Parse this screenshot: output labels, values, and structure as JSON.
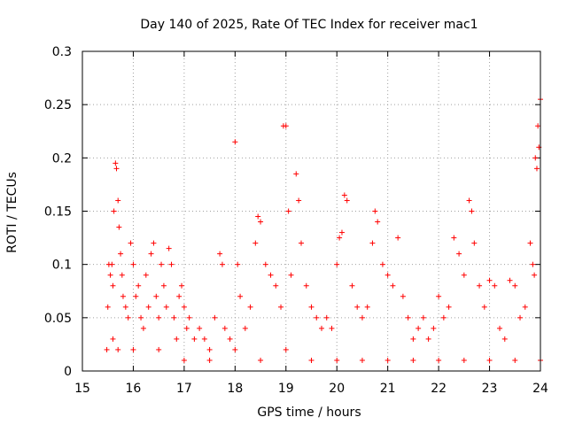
{
  "chart_data": {
    "type": "scatter",
    "title": "Day 140 of 2025, Rate Of TEC Index for receiver mac1",
    "xlabel": "GPS time / hours",
    "ylabel": "ROTI / TECUs",
    "xlim": [
      15,
      24
    ],
    "ylim": [
      0,
      0.3
    ],
    "xticks": [
      15,
      16,
      17,
      18,
      19,
      20,
      21,
      22,
      23,
      24
    ],
    "yticks": [
      0,
      0.05,
      0.1,
      0.15,
      0.2,
      0.25,
      0.3
    ],
    "xtick_labels": [
      "15",
      "16",
      "17",
      "18",
      "19",
      "20",
      "21",
      "22",
      "23",
      "24"
    ],
    "ytick_labels": [
      "0",
      "0.05",
      "0.1",
      "0.15",
      "0.2",
      "0.25",
      "0.3"
    ],
    "grid": true,
    "marker": "+",
    "color": "#ff0000",
    "series": [
      {
        "name": "ROTI",
        "points": [
          [
            15.48,
            0.02
          ],
          [
            15.5,
            0.06
          ],
          [
            15.52,
            0.1
          ],
          [
            15.55,
            0.09
          ],
          [
            15.58,
            0.1
          ],
          [
            15.6,
            0.08
          ],
          [
            15.62,
            0.15
          ],
          [
            15.65,
            0.195
          ],
          [
            15.67,
            0.19
          ],
          [
            15.7,
            0.16
          ],
          [
            15.72,
            0.135
          ],
          [
            15.75,
            0.11
          ],
          [
            15.78,
            0.09
          ],
          [
            15.8,
            0.07
          ],
          [
            15.85,
            0.06
          ],
          [
            15.9,
            0.05
          ],
          [
            15.95,
            0.12
          ],
          [
            16.0,
            0.1
          ],
          [
            16.05,
            0.07
          ],
          [
            16.1,
            0.08
          ],
          [
            16.15,
            0.05
          ],
          [
            16.2,
            0.04
          ],
          [
            16.25,
            0.09
          ],
          [
            16.3,
            0.06
          ],
          [
            16.35,
            0.11
          ],
          [
            16.4,
            0.12
          ],
          [
            16.45,
            0.07
          ],
          [
            16.5,
            0.05
          ],
          [
            16.55,
            0.1
          ],
          [
            16.6,
            0.08
          ],
          [
            16.65,
            0.06
          ],
          [
            16.7,
            0.115
          ],
          [
            16.75,
            0.1
          ],
          [
            16.8,
            0.05
          ],
          [
            16.85,
            0.03
          ],
          [
            16.9,
            0.07
          ],
          [
            16.95,
            0.08
          ],
          [
            17.0,
            0.06
          ],
          [
            17.05,
            0.04
          ],
          [
            17.1,
            0.05
          ],
          [
            17.2,
            0.03
          ],
          [
            17.3,
            0.04
          ],
          [
            17.4,
            0.03
          ],
          [
            17.5,
            0.02
          ],
          [
            17.6,
            0.05
          ],
          [
            17.7,
            0.11
          ],
          [
            17.75,
            0.1
          ],
          [
            17.8,
            0.04
          ],
          [
            17.9,
            0.03
          ],
          [
            18.0,
            0.215
          ],
          [
            18.05,
            0.1
          ],
          [
            18.1,
            0.07
          ],
          [
            18.2,
            0.04
          ],
          [
            18.3,
            0.06
          ],
          [
            18.4,
            0.12
          ],
          [
            18.45,
            0.145
          ],
          [
            18.5,
            0.14
          ],
          [
            18.6,
            0.1
          ],
          [
            18.7,
            0.09
          ],
          [
            18.8,
            0.08
          ],
          [
            18.9,
            0.06
          ],
          [
            18.95,
            0.23
          ],
          [
            19.0,
            0.23
          ],
          [
            19.05,
            0.15
          ],
          [
            19.1,
            0.09
          ],
          [
            19.2,
            0.185
          ],
          [
            19.25,
            0.16
          ],
          [
            19.3,
            0.12
          ],
          [
            19.4,
            0.08
          ],
          [
            19.5,
            0.06
          ],
          [
            19.6,
            0.05
          ],
          [
            19.7,
            0.04
          ],
          [
            19.8,
            0.05
          ],
          [
            19.9,
            0.04
          ],
          [
            20.0,
            0.1
          ],
          [
            20.05,
            0.125
          ],
          [
            20.1,
            0.13
          ],
          [
            20.15,
            0.165
          ],
          [
            20.2,
            0.16
          ],
          [
            20.3,
            0.08
          ],
          [
            20.4,
            0.06
          ],
          [
            20.5,
            0.05
          ],
          [
            20.6,
            0.06
          ],
          [
            20.7,
            0.12
          ],
          [
            20.75,
            0.15
          ],
          [
            20.8,
            0.14
          ],
          [
            20.9,
            0.1
          ],
          [
            21.0,
            0.09
          ],
          [
            21.1,
            0.08
          ],
          [
            21.2,
            0.125
          ],
          [
            21.3,
            0.07
          ],
          [
            21.4,
            0.05
          ],
          [
            21.5,
            0.03
          ],
          [
            21.6,
            0.04
          ],
          [
            21.7,
            0.05
          ],
          [
            21.8,
            0.03
          ],
          [
            21.9,
            0.04
          ],
          [
            22.0,
            0.07
          ],
          [
            22.1,
            0.05
          ],
          [
            22.2,
            0.06
          ],
          [
            22.3,
            0.125
          ],
          [
            22.4,
            0.11
          ],
          [
            22.5,
            0.09
          ],
          [
            22.6,
            0.16
          ],
          [
            22.65,
            0.15
          ],
          [
            22.7,
            0.12
          ],
          [
            22.8,
            0.08
          ],
          [
            22.9,
            0.06
          ],
          [
            23.0,
            0.085
          ],
          [
            23.1,
            0.08
          ],
          [
            23.2,
            0.04
          ],
          [
            23.3,
            0.03
          ],
          [
            23.4,
            0.085
          ],
          [
            23.5,
            0.08
          ],
          [
            23.6,
            0.05
          ],
          [
            23.7,
            0.06
          ],
          [
            23.8,
            0.12
          ],
          [
            23.85,
            0.1
          ],
          [
            23.9,
            0.2
          ],
          [
            23.95,
            0.23
          ],
          [
            24.0,
            0.255
          ],
          [
            23.97,
            0.21
          ],
          [
            23.93,
            0.19
          ],
          [
            23.88,
            0.09
          ],
          [
            15.6,
            0.03
          ],
          [
            15.7,
            0.02
          ],
          [
            16.0,
            0.02
          ],
          [
            16.5,
            0.02
          ],
          [
            17.0,
            0.01
          ],
          [
            17.5,
            0.01
          ],
          [
            18.0,
            0.02
          ],
          [
            18.5,
            0.01
          ],
          [
            19.0,
            0.02
          ],
          [
            19.5,
            0.01
          ],
          [
            20.0,
            0.01
          ],
          [
            20.5,
            0.01
          ],
          [
            21.0,
            0.01
          ],
          [
            21.5,
            0.01
          ],
          [
            22.0,
            0.01
          ],
          [
            22.5,
            0.01
          ],
          [
            23.0,
            0.01
          ],
          [
            23.5,
            0.01
          ],
          [
            24.0,
            0.01
          ]
        ]
      }
    ]
  }
}
